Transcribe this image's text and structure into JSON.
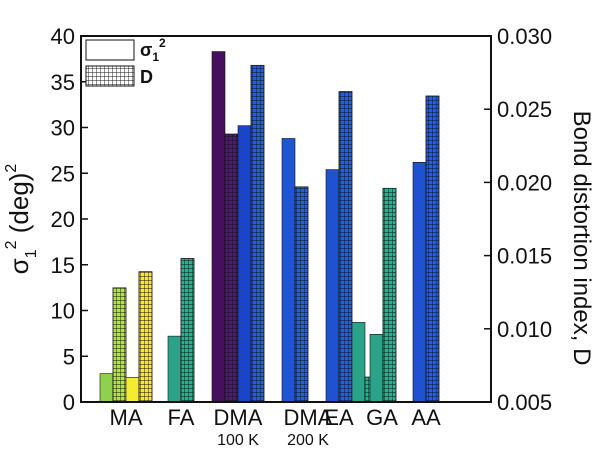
{
  "chart_data": {
    "type": "bar",
    "left_axis": {
      "label_main": "σ",
      "label_sub": "1",
      "label_sup": "2",
      "label_rest": " (deg)",
      "label_sup2": "2",
      "ylim": [
        0,
        40
      ],
      "ticks": [
        0,
        5,
        10,
        15,
        20,
        25,
        30,
        35,
        40
      ]
    },
    "right_axis": {
      "label": "Bond distortion index, D",
      "ylim": [
        0.005,
        0.03
      ],
      "ticks": [
        "0.005",
        "0.010",
        "0.015",
        "0.020",
        "0.025",
        "0.030"
      ]
    },
    "groups": [
      {
        "label": "MA",
        "sublabel": "",
        "bars": [
          {
            "series": "sigma",
            "value": 3.1,
            "color": "#8fd14f"
          },
          {
            "series": "D",
            "value": 0.0128,
            "color": "#b5e14a"
          },
          {
            "series": "sigma",
            "value": 2.7,
            "color": "#f4ea3a"
          },
          {
            "series": "D",
            "value": 0.0139,
            "color": "#f5e83a"
          }
        ]
      },
      {
        "label": "FA",
        "sublabel": "",
        "bars": [
          {
            "series": "sigma",
            "value": 7.2,
            "color": "#2aa389"
          },
          {
            "series": "D",
            "value": 0.0148,
            "color": "#2ab08e"
          }
        ]
      },
      {
        "label": "DMA",
        "sublabel": "100 K",
        "bars": [
          {
            "series": "sigma",
            "value": 38.3,
            "color": "#46105e"
          },
          {
            "series": "D",
            "value": 0.0233,
            "color": "#4a1f6a"
          }
        ]
      },
      {
        "label": "",
        "sublabel": "",
        "bars": [
          {
            "series": "sigma",
            "value": 30.2,
            "color": "#1a45c8"
          },
          {
            "series": "D",
            "value": 0.028,
            "color": "#2a5cd8"
          }
        ]
      },
      {
        "label": "DMA",
        "sublabel": "200 K",
        "bars": [
          {
            "series": "sigma",
            "value": 28.8,
            "color": "#1f55d2"
          },
          {
            "series": "D",
            "value": 0.0197,
            "color": "#2a5dd8"
          }
        ]
      },
      {
        "label": "EA",
        "sublabel": "",
        "bars": [
          {
            "series": "sigma",
            "value": 25.4,
            "color": "#1e52d0"
          },
          {
            "series": "D",
            "value": 0.0262,
            "color": "#2a5dd8"
          },
          {
            "series": "sigma",
            "value": 8.7,
            "color": "#2aa389"
          },
          {
            "series": "D",
            "value": 0.0067,
            "color": "#2ab08e"
          }
        ]
      },
      {
        "label": "GA",
        "sublabel": "",
        "bars": [
          {
            "series": "sigma",
            "value": 7.4,
            "color": "#2aa389"
          },
          {
            "series": "D",
            "value": 0.0196,
            "color": "#2ab08e"
          }
        ]
      },
      {
        "label": "AA",
        "sublabel": "",
        "bars": [
          {
            "series": "sigma",
            "value": 26.2,
            "color": "#1e52d0"
          },
          {
            "series": "D",
            "value": 0.0259,
            "color": "#2a5dd8"
          }
        ]
      }
    ],
    "legend": [
      {
        "series": "sigma",
        "text": "σ",
        "sub": "1",
        "sup": "2",
        "style": "plain"
      },
      {
        "series": "D",
        "text": "D",
        "style": "hatched"
      }
    ],
    "legend_position": "top-left"
  }
}
